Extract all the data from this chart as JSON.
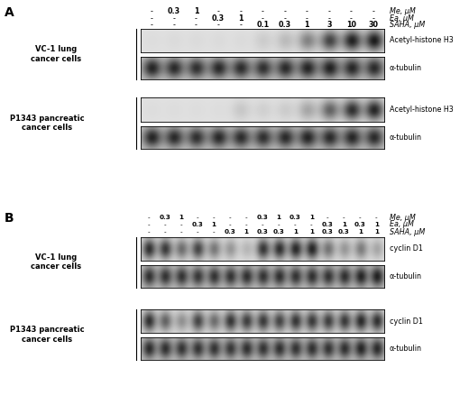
{
  "fig_width": 5.2,
  "fig_height": 4.59,
  "dpi": 100,
  "bg_color": "#ffffff",
  "panel_A": {
    "label": "A",
    "n_lanes": 11,
    "header_row1": [
      "-",
      "0.3",
      "1",
      "-",
      "-",
      "-",
      "-",
      "-",
      "-",
      "-",
      "-"
    ],
    "header_row2": [
      "-",
      "-",
      "-",
      "0.3",
      "1",
      "-",
      "-",
      "-",
      "-",
      "-",
      "-"
    ],
    "header_row3": [
      "-",
      "-",
      "-",
      "-",
      "-",
      "0.1",
      "0.3",
      "1",
      "3",
      "10",
      "30"
    ],
    "right_labels": [
      "Me, μM",
      "Ea, μM",
      "SAHA, μM"
    ],
    "blots": [
      {
        "label": "Acetyl-histone H3",
        "cell": "VC-1 lung\ncancer cells",
        "intensities": [
          0.02,
          0.03,
          0.03,
          0.03,
          0.03,
          0.1,
          0.18,
          0.45,
          0.75,
          0.92,
          0.95
        ],
        "bg": 0.88
      },
      {
        "label": "α-tubulin",
        "cell": null,
        "intensities": [
          0.88,
          0.85,
          0.82,
          0.86,
          0.84,
          0.82,
          0.85,
          0.88,
          0.9,
          0.87,
          0.85
        ],
        "bg": 0.78
      },
      {
        "label": "Acetyl-histone H3",
        "cell": "P1343 pancreatic\ncancer cells",
        "intensities": [
          0.02,
          0.02,
          0.02,
          0.02,
          0.12,
          0.08,
          0.1,
          0.28,
          0.6,
          0.85,
          0.9
        ],
        "bg": 0.88
      },
      {
        "label": "α-tubulin",
        "cell": null,
        "intensities": [
          0.88,
          0.85,
          0.82,
          0.86,
          0.84,
          0.82,
          0.85,
          0.88,
          0.85,
          0.87,
          0.85
        ],
        "bg": 0.78
      }
    ]
  },
  "panel_B": {
    "label": "B",
    "n_lanes": 15,
    "header_row1": [
      "-",
      "0.3",
      "1",
      "-",
      "-",
      "-",
      "-",
      "0.3",
      "1",
      "0.3",
      "1",
      "-",
      "-",
      "-",
      "-"
    ],
    "header_row2": [
      "-",
      "-",
      "-",
      "0.3",
      "1",
      "-",
      "-",
      "-",
      "-",
      "-",
      "-",
      "0.3",
      "1",
      "0.3",
      "1"
    ],
    "header_row3": [
      "-",
      "-",
      "-",
      "-",
      "-",
      "0.3",
      "1",
      "0.3",
      "0.3",
      "1",
      "1",
      "0.3",
      "0.3",
      "1",
      "1"
    ],
    "right_labels": [
      "Me, μM",
      "Ea, μM",
      "SAHA, μM"
    ],
    "blots": [
      {
        "label": "cyclin D1",
        "cell": "VC-1 lung\ncancer cells",
        "intensities": [
          0.85,
          0.8,
          0.55,
          0.75,
          0.5,
          0.35,
          0.2,
          0.82,
          0.85,
          0.88,
          0.9,
          0.52,
          0.35,
          0.48,
          0.28
        ],
        "bg": 0.88
      },
      {
        "label": "α-tubulin",
        "cell": null,
        "intensities": [
          0.82,
          0.8,
          0.8,
          0.78,
          0.8,
          0.8,
          0.82,
          0.8,
          0.82,
          0.8,
          0.82,
          0.8,
          0.82,
          0.88,
          0.9
        ],
        "bg": 0.78
      },
      {
        "label": "cyclin D1",
        "cell": "P1343 pancreatic\ncancer cells",
        "intensities": [
          0.85,
          0.6,
          0.38,
          0.75,
          0.55,
          0.82,
          0.78,
          0.8,
          0.75,
          0.82,
          0.8,
          0.78,
          0.8,
          0.88,
          0.85
        ],
        "bg": 0.88
      },
      {
        "label": "α-tubulin",
        "cell": null,
        "intensities": [
          0.85,
          0.82,
          0.8,
          0.8,
          0.8,
          0.78,
          0.82,
          0.8,
          0.82,
          0.8,
          0.82,
          0.8,
          0.82,
          0.88,
          0.85
        ],
        "bg": 0.78
      }
    ]
  }
}
